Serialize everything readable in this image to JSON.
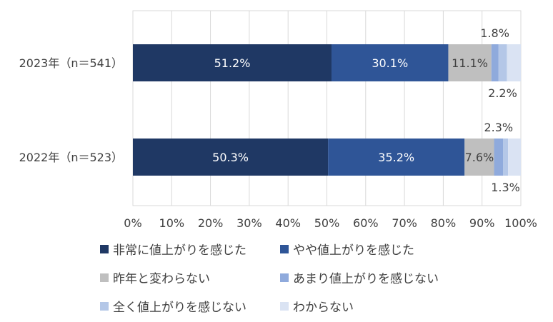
{
  "chart_data": {
    "type": "bar",
    "orientation": "horizontal-stacked-100",
    "categories": [
      "2023年（n＝541）",
      "2022年（n＝523）"
    ],
    "series": [
      {
        "name": "非常に値上がりを感じた",
        "color": "#1f3864",
        "values": [
          51.2,
          50.3
        ]
      },
      {
        "name": "やや値上がりを感じた",
        "color": "#2f5597",
        "values": [
          30.1,
          35.2
        ]
      },
      {
        "name": "昨年と変わらない",
        "color": "#bfbfbf",
        "values": [
          11.1,
          7.6
        ]
      },
      {
        "name": "あまり値上がりを感じない",
        "color": "#8faadc",
        "values": [
          1.8,
          2.3
        ]
      },
      {
        "name": "全く値上がりを感じない",
        "color": "#b4c7e7",
        "values": [
          2.2,
          1.3
        ]
      },
      {
        "name": "わからない",
        "color": "#dae3f3",
        "values": [
          3.6,
          3.3
        ]
      }
    ],
    "data_labels": {
      "2023年（n＝541）": [
        "51.2%",
        "30.1%",
        "11.1%",
        "1.8%",
        "2.2%",
        ""
      ],
      "2022年（n＝523）": [
        "50.3%",
        "35.2%",
        "7.6%",
        "2.3%",
        "1.3%",
        ""
      ]
    },
    "xlim": [
      0,
      100
    ],
    "x_ticks": [
      "0%",
      "10%",
      "20%",
      "30%",
      "40%",
      "50%",
      "60%",
      "70%",
      "80%",
      "90%",
      "100%"
    ],
    "grid": true,
    "legend_position": "bottom"
  }
}
